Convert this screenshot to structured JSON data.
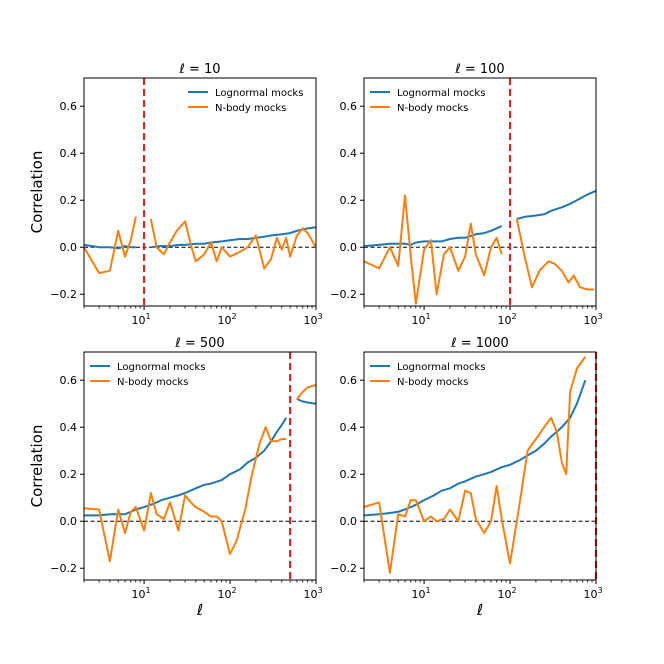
{
  "chart_data": [
    {
      "type": "line",
      "title": "ℓ = 10",
      "xlabel": "",
      "ylabel": "Correlation",
      "xscale": "log",
      "xlim": [
        2,
        1000
      ],
      "ylim": [
        -0.25,
        0.72
      ],
      "yticks": [
        -0.2,
        0.0,
        0.2,
        0.4,
        0.6
      ],
      "ytick_labels": [
        "−0.2",
        "0.0",
        "0.2",
        "0.4",
        "0.6"
      ],
      "xticks": [
        {
          "value": 10,
          "base": "10",
          "exp": "1"
        },
        {
          "value": 100,
          "base": "10",
          "exp": "2"
        },
        {
          "value": 1000,
          "base": "10",
          "exp": "3"
        }
      ],
      "vline": 10,
      "legend": "top-right",
      "series": [
        {
          "name": "Lognormal mocks",
          "color": "#1f77b4",
          "x": [
            2,
            2.5,
            3,
            4,
            5,
            6,
            7,
            8,
            null,
            12,
            15,
            20,
            25,
            30,
            40,
            50,
            60,
            80,
            100,
            130,
            160,
            200,
            250,
            300,
            400,
            500,
            600,
            800,
            1000
          ],
          "y": [
            0.01,
            0.005,
            0.0,
            0.0,
            -0.005,
            0.005,
            0.0,
            0.0,
            null,
            0.0,
            0.005,
            0.005,
            0.01,
            0.01,
            0.015,
            0.015,
            0.02,
            0.025,
            0.03,
            0.035,
            0.035,
            0.04,
            0.045,
            0.05,
            0.055,
            0.06,
            0.07,
            0.08,
            0.085
          ]
        },
        {
          "name": "N-body mocks",
          "color": "#ff7f0e",
          "x": [
            2,
            3,
            4,
            5,
            6,
            7,
            8,
            null,
            12,
            14,
            17,
            20,
            24,
            30,
            35,
            40,
            50,
            60,
            70,
            80,
            100,
            130,
            160,
            200,
            250,
            300,
            350,
            400,
            450,
            500,
            600,
            700,
            800,
            1000
          ],
          "y": [
            0.0,
            -0.11,
            -0.1,
            0.07,
            -0.04,
            0.03,
            0.13,
            null,
            0.12,
            0.0,
            -0.03,
            0.02,
            0.07,
            0.11,
            0.01,
            -0.06,
            -0.03,
            0.02,
            -0.06,
            0.0,
            -0.04,
            -0.02,
            0.0,
            0.05,
            -0.09,
            -0.05,
            0.04,
            -0.01,
            0.04,
            -0.04,
            0.05,
            0.08,
            0.06,
            0.0
          ]
        }
      ]
    },
    {
      "type": "line",
      "title": "ℓ = 100",
      "xlabel": "",
      "ylabel": "",
      "xscale": "log",
      "xlim": [
        2,
        1000
      ],
      "ylim": [
        -0.25,
        0.72
      ],
      "yticks": [
        -0.2,
        0.0,
        0.2,
        0.4,
        0.6
      ],
      "ytick_labels": [
        "−0.2",
        "0.0",
        "0.2",
        "0.4",
        "0.6"
      ],
      "xticks": [
        {
          "value": 10,
          "base": "10",
          "exp": "1"
        },
        {
          "value": 100,
          "base": "10",
          "exp": "2"
        },
        {
          "value": 1000,
          "base": "10",
          "exp": "3"
        }
      ],
      "vline": 100,
      "legend": "top-left",
      "series": [
        {
          "name": "Lognormal mocks",
          "color": "#1f77b4",
          "x": [
            2,
            3,
            4,
            5,
            6,
            7,
            8,
            10,
            13,
            16,
            20,
            25,
            30,
            40,
            50,
            60,
            80,
            null,
            120,
            150,
            200,
            250,
            300,
            400,
            500,
            600,
            800,
            1000
          ],
          "y": [
            0.005,
            0.01,
            0.015,
            0.015,
            0.015,
            0.01,
            0.02,
            0.025,
            0.025,
            0.025,
            0.035,
            0.04,
            0.04,
            0.055,
            0.06,
            0.07,
            0.09,
            null,
            0.12,
            0.13,
            0.135,
            0.14,
            0.155,
            0.17,
            0.185,
            0.2,
            0.225,
            0.24
          ]
        },
        {
          "name": "N-body mocks",
          "color": "#ff7f0e",
          "x": [
            2,
            3,
            4,
            5,
            6,
            7,
            8,
            10,
            12,
            14,
            17,
            20,
            25,
            30,
            35,
            40,
            50,
            60,
            70,
            80,
            null,
            120,
            150,
            180,
            220,
            280,
            330,
            400,
            480,
            550,
            650,
            800,
            950
          ],
          "y": [
            -0.06,
            -0.09,
            0.0,
            -0.08,
            0.22,
            -0.04,
            -0.24,
            -0.01,
            0.03,
            -0.2,
            -0.03,
            0.0,
            -0.1,
            -0.04,
            0.1,
            -0.03,
            -0.12,
            0.0,
            0.04,
            -0.03,
            null,
            0.12,
            -0.05,
            -0.17,
            -0.1,
            -0.06,
            -0.07,
            -0.1,
            -0.15,
            -0.12,
            -0.17,
            -0.18,
            -0.18
          ]
        }
      ]
    },
    {
      "type": "line",
      "title": "ℓ = 500",
      "xlabel": "ℓ",
      "ylabel": "Correlation",
      "xscale": "log",
      "xlim": [
        2,
        1000
      ],
      "ylim": [
        -0.25,
        0.72
      ],
      "yticks": [
        -0.2,
        0.0,
        0.2,
        0.4,
        0.6
      ],
      "ytick_labels": [
        "−0.2",
        "0.0",
        "0.2",
        "0.4",
        "0.6"
      ],
      "xticks": [
        {
          "value": 10,
          "base": "10",
          "exp": "1"
        },
        {
          "value": 100,
          "base": "10",
          "exp": "2"
        },
        {
          "value": 1000,
          "base": "10",
          "exp": "3"
        }
      ],
      "vline": 500,
      "legend": "top-left",
      "series": [
        {
          "name": "Lognormal mocks",
          "color": "#1f77b4",
          "x": [
            2,
            3,
            4,
            5,
            6,
            7,
            8,
            10,
            13,
            16,
            20,
            25,
            30,
            40,
            50,
            60,
            80,
            100,
            130,
            160,
            200,
            250,
            300,
            350,
            400,
            450,
            null,
            600,
            700,
            800,
            1000
          ],
          "y": [
            0.025,
            0.025,
            0.03,
            0.03,
            0.03,
            0.04,
            0.05,
            0.06,
            0.075,
            0.09,
            0.1,
            0.11,
            0.12,
            0.14,
            0.155,
            0.16,
            0.175,
            0.2,
            0.22,
            0.25,
            0.27,
            0.3,
            0.34,
            0.38,
            0.41,
            0.44,
            null,
            0.52,
            0.51,
            0.505,
            0.5
          ]
        },
        {
          "name": "N-body mocks",
          "color": "#ff7f0e",
          "x": [
            2,
            3,
            4,
            5,
            6,
            7,
            8,
            10,
            12,
            14,
            17,
            20,
            25,
            30,
            35,
            40,
            50,
            60,
            70,
            80,
            100,
            120,
            150,
            180,
            220,
            260,
            300,
            350,
            400,
            450,
            null,
            600,
            700,
            800,
            1000
          ],
          "y": [
            0.055,
            0.05,
            -0.17,
            0.05,
            -0.05,
            0.04,
            0.06,
            -0.04,
            0.12,
            0.03,
            0.01,
            0.08,
            -0.04,
            0.11,
            0.08,
            0.06,
            0.04,
            0.02,
            0.02,
            0.0,
            -0.14,
            -0.08,
            0.05,
            0.2,
            0.33,
            0.4,
            0.34,
            0.34,
            0.35,
            0.35,
            null,
            0.52,
            0.55,
            0.57,
            0.58
          ]
        }
      ]
    },
    {
      "type": "line",
      "title": "ℓ = 1000",
      "xlabel": "ℓ",
      "ylabel": "",
      "xscale": "log",
      "xlim": [
        2,
        1000
      ],
      "ylim": [
        -0.25,
        0.72
      ],
      "yticks": [
        -0.2,
        0.0,
        0.2,
        0.4,
        0.6
      ],
      "ytick_labels": [
        "−0.2",
        "0.0",
        "0.2",
        "0.4",
        "0.6"
      ],
      "xticks": [
        {
          "value": 10,
          "base": "10",
          "exp": "1"
        },
        {
          "value": 100,
          "base": "10",
          "exp": "2"
        },
        {
          "value": 1000,
          "base": "10",
          "exp": "3"
        }
      ],
      "vline": 1000,
      "legend": "top-left",
      "series": [
        {
          "name": "Lognormal mocks",
          "color": "#1f77b4",
          "x": [
            2,
            3,
            4,
            5,
            6,
            7,
            8,
            10,
            13,
            16,
            20,
            25,
            30,
            40,
            50,
            60,
            80,
            100,
            130,
            160,
            200,
            250,
            300,
            400,
            500,
            600,
            750
          ],
          "y": [
            0.025,
            0.03,
            0.035,
            0.04,
            0.05,
            0.06,
            0.07,
            0.09,
            0.11,
            0.13,
            0.14,
            0.16,
            0.17,
            0.19,
            0.2,
            0.21,
            0.23,
            0.24,
            0.26,
            0.28,
            0.3,
            0.33,
            0.36,
            0.4,
            0.44,
            0.5,
            0.6
          ]
        },
        {
          "name": "N-body mocks",
          "color": "#ff7f0e",
          "x": [
            2,
            3,
            4,
            5,
            6,
            7,
            8,
            10,
            12,
            14,
            17,
            20,
            25,
            30,
            35,
            40,
            50,
            60,
            70,
            80,
            100,
            130,
            160,
            200,
            250,
            300,
            350,
            400,
            450,
            500,
            600,
            750
          ],
          "y": [
            0.06,
            0.08,
            -0.22,
            0.03,
            0.02,
            0.09,
            0.09,
            0.0,
            0.02,
            0.0,
            0.01,
            0.05,
            0.0,
            0.13,
            0.12,
            0.01,
            -0.05,
            0.0,
            0.15,
            0.01,
            -0.18,
            0.08,
            0.3,
            0.35,
            0.4,
            0.44,
            0.38,
            0.25,
            0.2,
            0.55,
            0.65,
            0.7
          ]
        }
      ]
    }
  ]
}
